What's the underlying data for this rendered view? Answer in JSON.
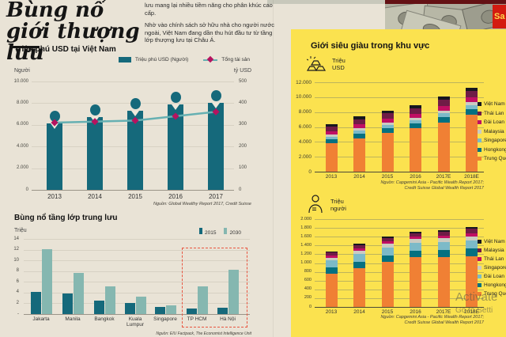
{
  "masthead": {
    "logo_text": "Sa"
  },
  "watermark": {
    "line1": "Activate",
    "line2": "Go to Setti"
  },
  "left": {
    "title_line1": "Bùng nổ",
    "title_line2": "giới thượng lưu",
    "intro_p1": "lưu mang lại nhiều tiềm năng cho phân khúc cao cấp.",
    "intro_p2": "Nhờ vào chính sách sở hữu nhà cho người nước ngoài, Việt Nam đang dần thu hút đầu tư từ tầng lớp thượng lưu tại Châu Á."
  },
  "right_panel": {
    "title": "Giới siêu giàu trong khu vực"
  },
  "chart_data": [
    {
      "id": "millionaires-vietnam",
      "type": "bar",
      "title": "Triệu phú USD tại Việt Nam",
      "left_axis_label": "Người",
      "right_axis_label": "tỷ USD",
      "legend": [
        {
          "label": "Triệu phú USD (Người)",
          "color": "#15697b"
        },
        {
          "label": "Tổng tài sản",
          "line_color": "#66b0b2",
          "marker_color": "#b5135f"
        }
      ],
      "categories": [
        "2013",
        "2014",
        "2015",
        "2016",
        "2017"
      ],
      "bar_values": [
        6100,
        6700,
        7300,
        7900,
        8000
      ],
      "line_values": [
        310,
        315,
        320,
        340,
        360
      ],
      "left_ylim": [
        0,
        10000
      ],
      "right_ylim": [
        0,
        500
      ],
      "left_ticks": [
        "10.000",
        "8.000",
        "6.000",
        "4.000",
        "2.000",
        "0"
      ],
      "right_ticks": [
        "500",
        "400",
        "300",
        "200",
        "100",
        "0"
      ],
      "source": "Nguồn: Global Wealthy Report 2017, Credit Suisse"
    },
    {
      "id": "middle-class-boom",
      "type": "bar",
      "title": "Bùng nổ tầng lớp trung lưu",
      "unit": "Triệu",
      "categories": [
        "Jakarta",
        "Manila",
        "Bangkok",
        "Kuala Lumpur",
        "Singapore",
        "TP HCM",
        "Hà Nội"
      ],
      "series": [
        {
          "name": "2015",
          "color": "#15697b",
          "values": [
            4.2,
            3.9,
            2.5,
            2.0,
            1.3,
            1.0,
            1.2
          ]
        },
        {
          "name": "2030",
          "color": "#85b7b0",
          "values": [
            12.1,
            7.6,
            5.1,
            3.3,
            1.6,
            5.2,
            8.2
          ]
        }
      ],
      "ylim": [
        0,
        14
      ],
      "yticks": [
        "14",
        "12",
        "10",
        "8",
        "6",
        "4",
        "2",
        "-"
      ],
      "highlight": {
        "categories": [
          "TP HCM",
          "Hà Nội"
        ],
        "style": "red-dashed-box",
        "color": "#e85540"
      },
      "source": "Nguồn: EIU Factpack, The Economist Intelligence Unit"
    },
    {
      "id": "region-super-rich-wealth",
      "type": "bar",
      "unit_line1": "Triệu",
      "unit_line2": "USD",
      "icon": "gold-bars-icon",
      "categories": [
        "2013",
        "2014",
        "2015",
        "2016",
        "2017E",
        "2018E"
      ],
      "series": [
        {
          "name": "Việt Nam",
          "color": "#17171f",
          "values": [
            300,
            380,
            360,
            400,
            480,
            500
          ]
        },
        {
          "name": "Thái Lan",
          "color": "#6f1c46",
          "values": [
            600,
            680,
            700,
            700,
            800,
            850
          ]
        },
        {
          "name": "Đài Loan",
          "color": "#c00f63",
          "values": [
            450,
            520,
            550,
            560,
            620,
            650
          ]
        },
        {
          "name": "Malaysia",
          "color": "#cbcbc1",
          "values": [
            280,
            300,
            320,
            330,
            370,
            400
          ]
        },
        {
          "name": "Singapore",
          "color": "#7cbac8",
          "values": [
            350,
            400,
            420,
            430,
            480,
            500
          ]
        },
        {
          "name": "Hongkong",
          "color": "#057080",
          "values": [
            550,
            620,
            650,
            680,
            750,
            800
          ]
        },
        {
          "name": "Trung Quốc",
          "color": "#f08034",
          "values": [
            3800,
            4500,
            5200,
            5800,
            6600,
            7600
          ]
        }
      ],
      "ylim": [
        0,
        12000
      ],
      "yticks": [
        "12.000",
        "10.000",
        "8.000",
        "6.000",
        "4.000",
        "2.000",
        "0"
      ],
      "source_line1": "Nguồn: Capgemini Asia - Pacific Wealth Report 2017;",
      "source_line2": "Credit Suisse Global Wealth Report 2017"
    },
    {
      "id": "region-super-rich-population",
      "type": "bar",
      "unit_line1": "Triệu",
      "unit_line2": "người",
      "icon": "wealthy-person-icon",
      "categories": [
        "2013",
        "2014",
        "2015",
        "2016",
        "2017E",
        "2018E"
      ],
      "series": [
        {
          "name": "Việt Nam",
          "color": "#17171f",
          "values": [
            25,
            30,
            30,
            30,
            40,
            45
          ]
        },
        {
          "name": "Malaysia",
          "color": "#6f1c46",
          "values": [
            60,
            70,
            75,
            75,
            85,
            100
          ]
        },
        {
          "name": "Thái Lan",
          "color": "#c00f63",
          "values": [
            50,
            55,
            60,
            60,
            65,
            70
          ]
        },
        {
          "name": "Singapore",
          "color": "#cbcbc1",
          "values": [
            70,
            80,
            85,
            85,
            90,
            95
          ]
        },
        {
          "name": "Đài Loan",
          "color": "#7cbac8",
          "values": [
            160,
            170,
            175,
            175,
            180,
            185
          ]
        },
        {
          "name": "Hongkong",
          "color": "#057080",
          "values": [
            145,
            150,
            155,
            155,
            160,
            165
          ]
        },
        {
          "name": "Trung Quốc",
          "color": "#f08034",
          "values": [
            750,
            880,
            1020,
            1130,
            1130,
            1160
          ]
        }
      ],
      "ylim": [
        0,
        2000
      ],
      "yticks": [
        "2.000",
        "1.800",
        "1.600",
        "1.400",
        "1.200",
        "1.000",
        "800",
        "600",
        "400",
        "200",
        "0"
      ],
      "source_line1": "Nguồn: Capgemini Asia - Pacific Wealth Report 2017;",
      "source_line2": "Credit Suisse Global Wealth Report 2017"
    }
  ]
}
